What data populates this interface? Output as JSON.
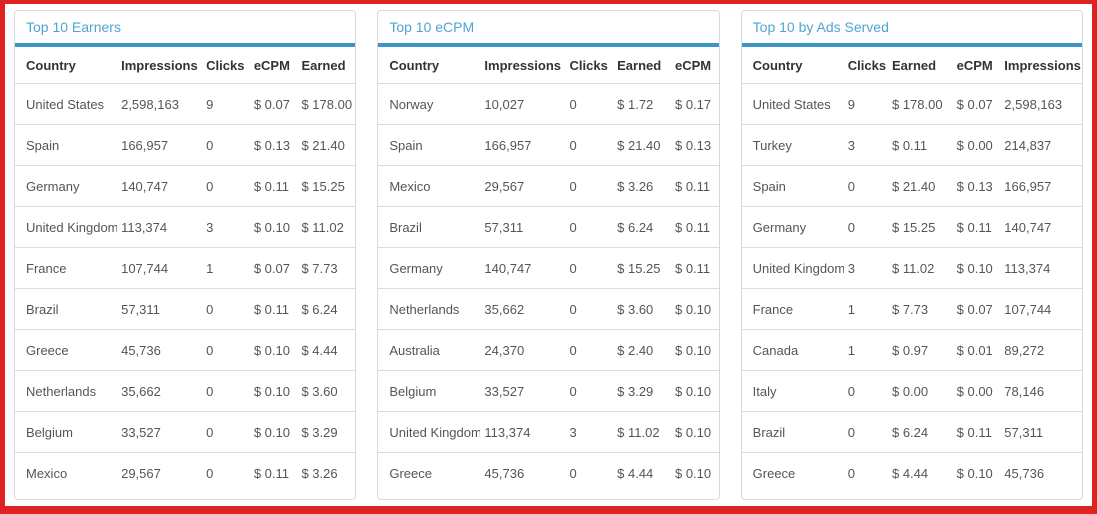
{
  "theme": {
    "page_border_color": "#dd2222",
    "panel_border_color": "#d9d9d9",
    "title_color": "#4fa5d2",
    "accent_bar_color": "#3b95c5",
    "header_text_color": "#333333",
    "cell_text_color": "#555555",
    "row_divider_color": "#dddddd"
  },
  "panels": [
    {
      "title": "Top 10 Earners",
      "headers": [
        "Country",
        "Impressions",
        "Clicks",
        "eCPM",
        "Earned"
      ],
      "rows": [
        [
          "United States",
          "2,598,163",
          "9",
          "$ 0.07",
          "$ 178.00"
        ],
        [
          "Spain",
          "166,957",
          "0",
          "$ 0.13",
          "$ 21.40"
        ],
        [
          "Germany",
          "140,747",
          "0",
          "$ 0.11",
          "$ 15.25"
        ],
        [
          "United Kingdom",
          "113,374",
          "3",
          "$ 0.10",
          "$ 11.02"
        ],
        [
          "France",
          "107,744",
          "1",
          "$ 0.07",
          "$ 7.73"
        ],
        [
          "Brazil",
          "57,311",
          "0",
          "$ 0.11",
          "$ 6.24"
        ],
        [
          "Greece",
          "45,736",
          "0",
          "$ 0.10",
          "$ 4.44"
        ],
        [
          "Netherlands",
          "35,662",
          "0",
          "$ 0.10",
          "$ 3.60"
        ],
        [
          "Belgium",
          "33,527",
          "0",
          "$ 0.10",
          "$ 3.29"
        ],
        [
          "Mexico",
          "29,567",
          "0",
          "$ 0.11",
          "$ 3.26"
        ]
      ]
    },
    {
      "title": "Top 10 eCPM",
      "headers": [
        "Country",
        "Impressions",
        "Clicks",
        "Earned",
        "eCPM"
      ],
      "rows": [
        [
          "Norway",
          "10,027",
          "0",
          "$ 1.72",
          "$ 0.17"
        ],
        [
          "Spain",
          "166,957",
          "0",
          "$ 21.40",
          "$ 0.13"
        ],
        [
          "Mexico",
          "29,567",
          "0",
          "$ 3.26",
          "$ 0.11"
        ],
        [
          "Brazil",
          "57,311",
          "0",
          "$ 6.24",
          "$ 0.11"
        ],
        [
          "Germany",
          "140,747",
          "0",
          "$ 15.25",
          "$ 0.11"
        ],
        [
          "Netherlands",
          "35,662",
          "0",
          "$ 3.60",
          "$ 0.10"
        ],
        [
          "Australia",
          "24,370",
          "0",
          "$ 2.40",
          "$ 0.10"
        ],
        [
          "Belgium",
          "33,527",
          "0",
          "$ 3.29",
          "$ 0.10"
        ],
        [
          "United Kingdom",
          "113,374",
          "3",
          "$ 11.02",
          "$ 0.10"
        ],
        [
          "Greece",
          "45,736",
          "0",
          "$ 4.44",
          "$ 0.10"
        ]
      ]
    },
    {
      "title": "Top 10 by Ads Served",
      "headers": [
        "Country",
        "Clicks",
        "Earned",
        "eCPM",
        "Impressions"
      ],
      "rows": [
        [
          "United States",
          "9",
          "$ 178.00",
          "$ 0.07",
          "2,598,163"
        ],
        [
          "Turkey",
          "3",
          "$ 0.11",
          "$ 0.00",
          "214,837"
        ],
        [
          "Spain",
          "0",
          "$ 21.40",
          "$ 0.13",
          "166,957"
        ],
        [
          "Germany",
          "0",
          "$ 15.25",
          "$ 0.11",
          "140,747"
        ],
        [
          "United Kingdom",
          "3",
          "$ 11.02",
          "$ 0.10",
          "113,374"
        ],
        [
          "France",
          "1",
          "$ 7.73",
          "$ 0.07",
          "107,744"
        ],
        [
          "Canada",
          "1",
          "$ 0.97",
          "$ 0.01",
          "89,272"
        ],
        [
          "Italy",
          "0",
          "$ 0.00",
          "$ 0.00",
          "78,146"
        ],
        [
          "Brazil",
          "0",
          "$ 6.24",
          "$ 0.11",
          "57,311"
        ],
        [
          "Greece",
          "0",
          "$ 4.44",
          "$ 0.10",
          "45,736"
        ]
      ]
    }
  ]
}
